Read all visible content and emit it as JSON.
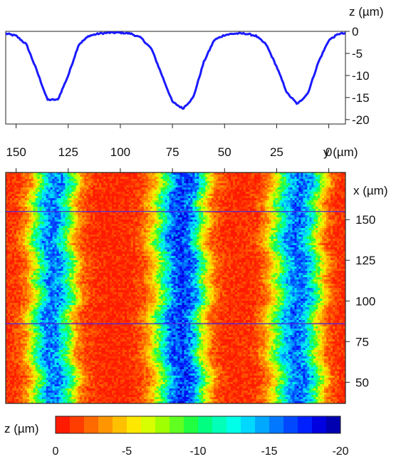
{
  "chart_data": [
    {
      "type": "line",
      "ylabel": "z (µm)",
      "x_direction": "reversed",
      "xlim": [
        -8,
        155
      ],
      "ylim": [
        -21,
        0
      ],
      "yticks": [
        0,
        -5,
        -10,
        -15,
        -20
      ],
      "y_tick_labels": [
        "0",
        "-5",
        "-10",
        "-15",
        "-20"
      ],
      "grid": false,
      "series": [
        {
          "color": "#1a1aff",
          "x": [
            155,
            150,
            145,
            140,
            135,
            130,
            125,
            120,
            115,
            110,
            105,
            100,
            95,
            90,
            85,
            80,
            75,
            70,
            65,
            60,
            55,
            50,
            45,
            40,
            35,
            30,
            25,
            20,
            15,
            10,
            5,
            0,
            -5,
            -8
          ],
          "y": [
            -0.5,
            -1,
            -3,
            -9,
            -15.5,
            -15.5,
            -10,
            -3,
            -1,
            -0.5,
            -0.3,
            -0.3,
            -0.5,
            -1.5,
            -4,
            -10,
            -16,
            -17.5,
            -15,
            -7,
            -2,
            -0.8,
            -0.5,
            -0.5,
            -1,
            -3,
            -8,
            -14,
            -16.5,
            -14,
            -7,
            -2,
            -0.5,
            -0.5
          ]
        }
      ]
    },
    {
      "type": "heatmap",
      "xlabel": "y (µm)",
      "ylabel": "x (µm)",
      "xlim": [
        -8,
        155
      ],
      "ylim": [
        37,
        179
      ],
      "xticks": [
        150,
        125,
        100,
        75,
        50,
        25,
        0
      ],
      "x_tick_labels": [
        "150",
        "125",
        "100",
        "75",
        "50",
        "25",
        "0"
      ],
      "yticks": [
        150,
        125,
        100,
        75,
        50
      ],
      "y_tick_labels": [
        "150",
        "125",
        "100",
        "75",
        "50"
      ],
      "profile_lines_x": [
        155,
        86
      ],
      "profile_line_color": "#4a2bd8",
      "columns_y": [
        155,
        150,
        145,
        140,
        135,
        130,
        125,
        120,
        115,
        110,
        105,
        100,
        95,
        90,
        85,
        80,
        75,
        70,
        65,
        60,
        55,
        50,
        45,
        40,
        35,
        30,
        25,
        20,
        15,
        10,
        5,
        0,
        -5,
        -8
      ],
      "column_z": [
        -0.5,
        -1,
        -3,
        -9,
        -15.5,
        -15.5,
        -10,
        -3,
        -1,
        -0.5,
        -0.3,
        -0.3,
        -0.5,
        -1.5,
        -4,
        -10,
        -16,
        -17.5,
        -15,
        -7,
        -2,
        -0.8,
        -0.5,
        -0.5,
        -1,
        -3,
        -8,
        -14,
        -16.5,
        -14,
        -7,
        -2,
        -0.5,
        -0.5
      ],
      "colorbar": {
        "label": "z (µm)",
        "range": [
          0,
          -20
        ],
        "tick_labels": [
          "0",
          "-5",
          "-10",
          "-15",
          "-20"
        ],
        "colors": [
          "#ff1a00",
          "#ff3d00",
          "#ff6a00",
          "#ff9500",
          "#ffc000",
          "#ffe800",
          "#d8ff00",
          "#a0ff00",
          "#60ff20",
          "#20ff40",
          "#00ff80",
          "#00ffb8",
          "#00ffe8",
          "#00d8ff",
          "#00a8ff",
          "#0078ff",
          "#0048ff",
          "#0020ff",
          "#0000e0",
          "#0000b0"
        ]
      }
    }
  ]
}
